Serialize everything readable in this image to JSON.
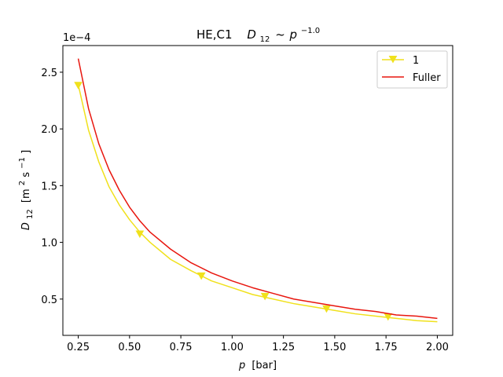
{
  "chart_data": {
    "type": "line",
    "title": "HE,C1",
    "title_formula": {
      "symbol": "D",
      "subscript": "12",
      "relation": "~",
      "base": "p",
      "exponent": "−1.0"
    },
    "xlabel": {
      "symbol": "p",
      "unit": "[bar]"
    },
    "ylabel": {
      "symbol": "D",
      "subscript": "12",
      "unit_open": "[m",
      "unit_sup1": "2",
      "unit_mid": "s",
      "unit_sup2": "−1",
      "unit_close": "]"
    },
    "y_multiplier": "1e−4",
    "xlim": [
      0.175,
      2.075
    ],
    "ylim": [
      0.18,
      2.735
    ],
    "x_ticks": [
      0.25,
      0.5,
      0.75,
      1.0,
      1.25,
      1.5,
      1.75,
      2.0
    ],
    "x_tick_labels": [
      "0.25",
      "0.50",
      "0.75",
      "1.00",
      "1.25",
      "1.50",
      "1.75",
      "2.00"
    ],
    "y_ticks": [
      0.5,
      1.0,
      1.5,
      2.0,
      2.5
    ],
    "y_tick_labels": [
      "0.5",
      "1.0",
      "1.5",
      "2.0",
      "2.5"
    ],
    "grid": false,
    "legend_position": "top-right",
    "x": [
      0.25,
      0.3,
      0.35,
      0.4,
      0.45,
      0.5,
      0.55,
      0.6,
      0.7,
      0.8,
      0.9,
      1.0,
      1.1,
      1.2,
      1.3,
      1.4,
      1.5,
      1.6,
      1.7,
      1.8,
      1.9,
      2.0
    ],
    "series": [
      {
        "name": "1",
        "color": "#f0e11c",
        "marker": "triangle-down",
        "values": [
          2.39,
          1.99,
          1.71,
          1.49,
          1.33,
          1.2,
          1.09,
          1.0,
          0.85,
          0.75,
          0.66,
          0.6,
          0.54,
          0.5,
          0.46,
          0.43,
          0.4,
          0.37,
          0.35,
          0.33,
          0.31,
          0.3
        ],
        "marker_x": [
          0.25,
          0.55,
          0.85,
          1.16,
          1.46,
          1.76
        ],
        "marker_values": [
          2.38,
          1.07,
          0.7,
          0.52,
          0.41,
          0.34
        ]
      },
      {
        "name": "Fuller",
        "color": "#e8160e",
        "marker": "none",
        "values": [
          2.62,
          2.18,
          1.87,
          1.64,
          1.46,
          1.31,
          1.19,
          1.09,
          0.94,
          0.82,
          0.73,
          0.66,
          0.6,
          0.55,
          0.5,
          0.47,
          0.44,
          0.41,
          0.39,
          0.36,
          0.35,
          0.33
        ]
      }
    ]
  }
}
